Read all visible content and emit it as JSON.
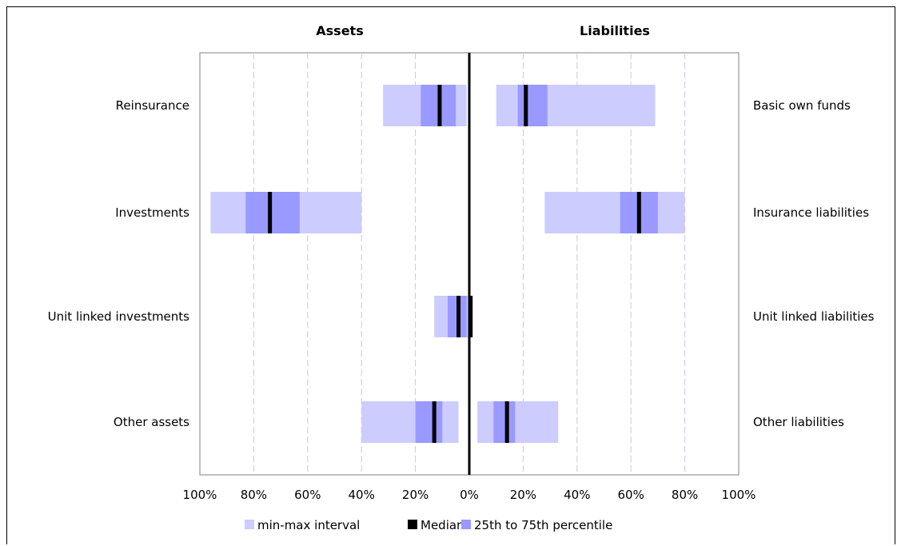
{
  "chart_data": {
    "type": "bar",
    "titles": {
      "left": "Assets",
      "right": "Liabilities"
    },
    "x_tick_labels": [
      "100%",
      "80%",
      "60%",
      "40%",
      "20%",
      "0%",
      "20%",
      "40%",
      "60%",
      "80%",
      "100%"
    ],
    "xlim": [
      -100,
      100
    ],
    "grid": true,
    "legend_position": "bottom",
    "legend": [
      {
        "key": "minmax",
        "label": "min-max interval",
        "color": "#ccccff"
      },
      {
        "key": "median",
        "label": "Median",
        "color": "#000000"
      },
      {
        "key": "iqr",
        "label": "25th to 75th percentile",
        "color": "#9999ff"
      }
    ],
    "categories": [
      {
        "left_label": "Reinsurance",
        "right_label": "Basic own funds",
        "assets": {
          "min": 1,
          "max": 32,
          "p25": 5,
          "p75": 18,
          "median": 11
        },
        "liabilities": {
          "min": 10,
          "max": 69,
          "p25": 18,
          "p75": 29,
          "median": 21
        }
      },
      {
        "left_label": "Investments",
        "right_label": "Insurance liabilities",
        "assets": {
          "min": 40,
          "max": 96,
          "p25": 63,
          "p75": 83,
          "median": 74
        },
        "liabilities": {
          "min": 28,
          "max": 80,
          "p25": 56,
          "p75": 70,
          "median": 63
        }
      },
      {
        "left_label": "Unit linked investments",
        "right_label": "Unit linked liabilities",
        "assets": {
          "min": 0,
          "max": 13,
          "p25": 1,
          "p75": 8,
          "median": 4
        },
        "liabilities": {
          "min": 0,
          "max": 1,
          "p25": 0,
          "p75": 1,
          "median": 0.5
        }
      },
      {
        "left_label": "Other assets",
        "right_label": "Other liabilities",
        "assets": {
          "min": 4,
          "max": 40,
          "p25": 10,
          "p75": 20,
          "median": 13
        },
        "liabilities": {
          "min": 3,
          "max": 33,
          "p25": 9,
          "p75": 17,
          "median": 14
        }
      }
    ]
  }
}
